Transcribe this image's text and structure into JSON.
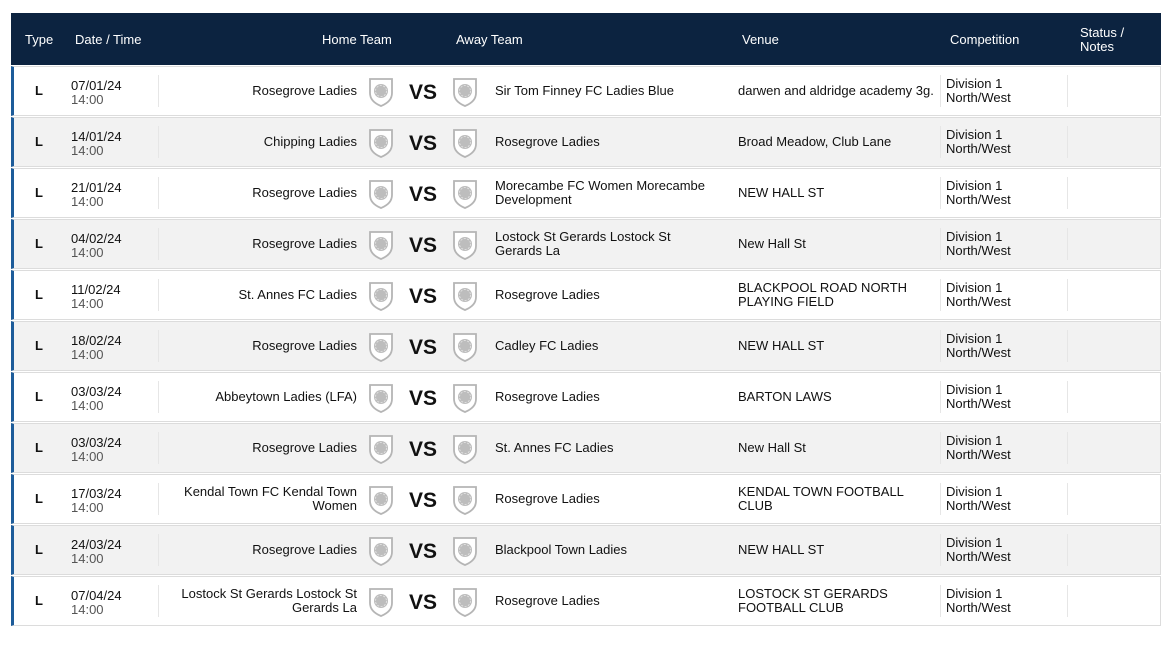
{
  "header": {
    "columns": [
      "Type",
      "Date / Time",
      "Home Team",
      "Away Team",
      "Venue",
      "Competition",
      "Status / Notes"
    ]
  },
  "fixtures": [
    {
      "type": "L",
      "date": "07/01/24",
      "time": "14:00",
      "home": "Rosegrove Ladies",
      "vs": "VS",
      "away": "Sir Tom Finney FC Ladies Blue",
      "venue": "darwen and aldridge academy 3g.",
      "competition": "Division 1 North/West"
    },
    {
      "type": "L",
      "date": "14/01/24",
      "time": "14:00",
      "home": "Chipping Ladies",
      "vs": "VS",
      "away": "Rosegrove Ladies",
      "venue": "Broad Meadow, Club Lane",
      "competition": "Division 1 North/West"
    },
    {
      "type": "L",
      "date": "21/01/24",
      "time": "14:00",
      "home": "Rosegrove Ladies",
      "vs": "VS",
      "away": "Morecambe FC Women Morecambe Development",
      "venue": "NEW HALL ST",
      "competition": "Division 1 North/West"
    },
    {
      "type": "L",
      "date": "04/02/24",
      "time": "14:00",
      "home": "Rosegrove Ladies",
      "vs": "VS",
      "away": "Lostock St Gerards Lostock St Gerards La",
      "venue": "New Hall St",
      "competition": "Division 1 North/West"
    },
    {
      "type": "L",
      "date": "11/02/24",
      "time": "14:00",
      "home": "St. Annes FC Ladies",
      "vs": "VS",
      "away": "Rosegrove Ladies",
      "venue": "BLACKPOOL ROAD NORTH PLAYING FIELD",
      "competition": "Division 1 North/West"
    },
    {
      "type": "L",
      "date": "18/02/24",
      "time": "14:00",
      "home": "Rosegrove Ladies",
      "vs": "VS",
      "away": "Cadley FC Ladies",
      "venue": "NEW HALL ST",
      "competition": "Division 1 North/West"
    },
    {
      "type": "L",
      "date": "03/03/24",
      "time": "14:00",
      "home": "Abbeytown Ladies (LFA)",
      "vs": "VS",
      "away": "Rosegrove Ladies",
      "venue": "BARTON LAWS",
      "competition": "Division 1 North/West"
    },
    {
      "type": "L",
      "date": "03/03/24",
      "time": "14:00",
      "home": "Rosegrove Ladies",
      "vs": "VS",
      "away": "St. Annes FC Ladies",
      "venue": "New Hall St",
      "competition": "Division 1 North/West"
    },
    {
      "type": "L",
      "date": "17/03/24",
      "time": "14:00",
      "home": "Kendal Town FC Kendal Town Women",
      "vs": "VS",
      "away": "Rosegrove Ladies",
      "venue": "KENDAL TOWN FOOTBALL CLUB",
      "competition": "Division 1 North/West"
    },
    {
      "type": "L",
      "date": "24/03/24",
      "time": "14:00",
      "home": "Rosegrove Ladies",
      "vs": "VS",
      "away": "Blackpool Town Ladies",
      "venue": "NEW HALL ST",
      "competition": "Division 1 North/West"
    },
    {
      "type": "L",
      "date": "07/04/24",
      "time": "14:00",
      "home": "Lostock St Gerards Lostock St Gerards La",
      "vs": "VS",
      "away": "Rosegrove Ladies",
      "venue": "LOSTOCK ST GERARDS FOOTBALL CLUB",
      "competition": "Division 1 North/West"
    }
  ]
}
